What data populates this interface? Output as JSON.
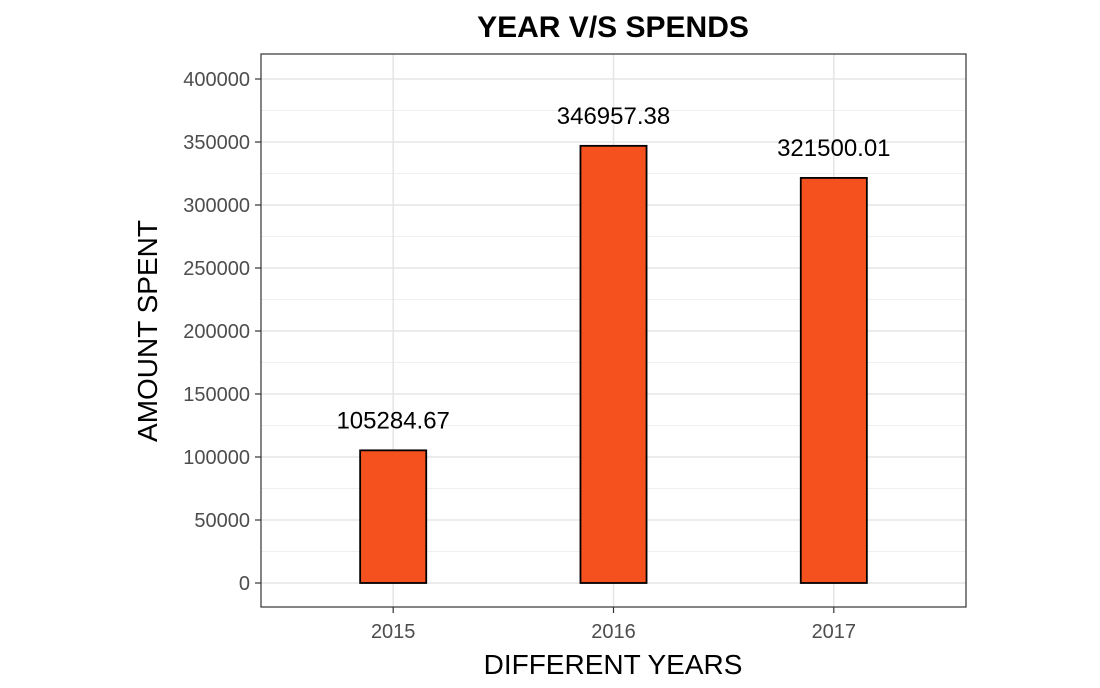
{
  "chart_data": {
    "type": "bar",
    "title": "YEAR V/S SPENDS",
    "xlabel": "DIFFERENT YEARS",
    "ylabel": "AMOUNT SPENT",
    "categories": [
      "2015",
      "2016",
      "2017"
    ],
    "values": [
      105284.67,
      346957.38,
      321500.01
    ],
    "data_labels": [
      "105284.67",
      "346957.38",
      "321500.01"
    ],
    "ylim": [
      0,
      400000
    ],
    "y_ticks": [
      0,
      50000,
      100000,
      150000,
      200000,
      250000,
      300000,
      350000,
      400000
    ],
    "y_tick_labels": [
      "0",
      "50000",
      "100000",
      "150000",
      "200000",
      "250000",
      "300000",
      "350000",
      "400000"
    ],
    "grid": true,
    "bar_color": "#F4511E",
    "bar_outline_color": "#000000",
    "legend": "none"
  }
}
